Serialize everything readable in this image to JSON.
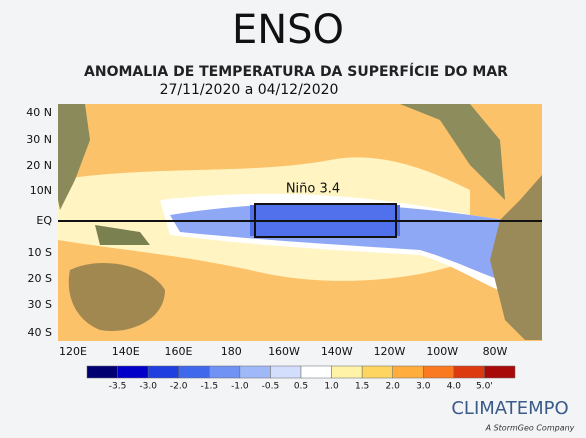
{
  "header": {
    "title": "ENSO",
    "subtitle": "ANOMALIA DE TEMPERATURA DA SUPERFÍCIE DO MAR",
    "period": "27/11/2020 a 04/12/2020"
  },
  "map": {
    "lat_labels": [
      "40 N",
      "30 N",
      "20 N",
      "10N",
      "EQ",
      "10 S",
      "20 S",
      "30 S",
      "40 S"
    ],
    "lon_labels": [
      "120E",
      "140E",
      "160E",
      "180",
      "160W",
      "140W",
      "120W",
      "100W",
      "80W"
    ],
    "region_label": "Niño 3.4"
  },
  "colorbar": {
    "labels": [
      "-3.5",
      "-3.0",
      "-2.0",
      "-1.5",
      "-1.0",
      "-0.5",
      "0.5",
      "1.0",
      "1.5",
      "2.0",
      "3.0",
      "4.0",
      "5.0'"
    ],
    "colors": [
      "#000070",
      "#0000c8",
      "#1f3fe0",
      "#3f68ec",
      "#6f92f4",
      "#9fb8f8",
      "#d2defb",
      "#ffffff",
      "#fff3a8",
      "#ffd561",
      "#ffae3d",
      "#fa7a22",
      "#dd3a10",
      "#a80a0a"
    ]
  },
  "logo": {
    "name": "CLIMATEMPO",
    "tagline": "A StormGeo Company"
  }
}
